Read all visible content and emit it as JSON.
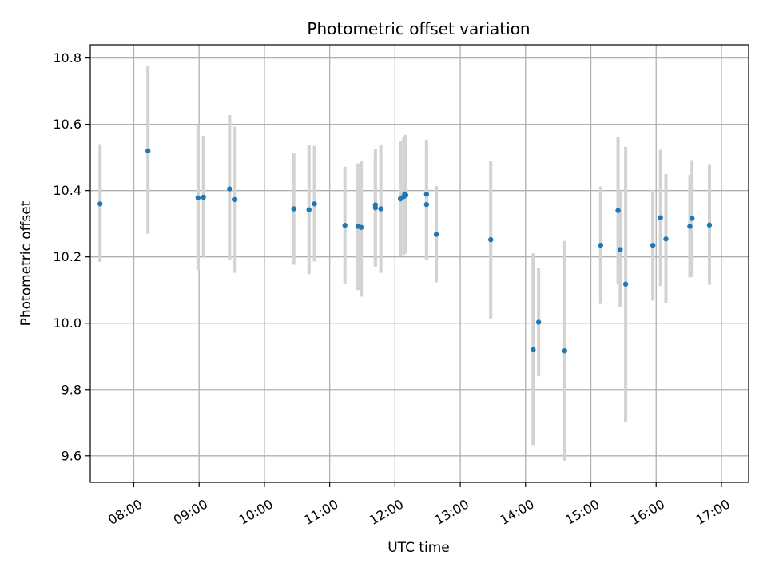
{
  "chart_data": {
    "type": "scatter",
    "title": "Photometric offset variation",
    "xlabel": "UTC time",
    "ylabel": "Photometric offset",
    "xlim": [
      "07:20",
      "17:25"
    ],
    "ylim": [
      9.52,
      10.84
    ],
    "x_ticks": [
      "08:00",
      "09:00",
      "10:00",
      "11:00",
      "12:00",
      "13:00",
      "14:00",
      "15:00",
      "16:00",
      "17:00"
    ],
    "y_ticks": [
      "9.6",
      "9.8",
      "10.0",
      "10.2",
      "10.4",
      "10.6",
      "10.8"
    ],
    "grid": true,
    "colors": {
      "point": "#1f77b4",
      "errorbar": "#d3d3d3",
      "grid": "#b0b0b0"
    },
    "points": [
      {
        "x": "07:29",
        "y": 10.36,
        "ylow": 10.185,
        "yhigh": 10.54
      },
      {
        "x": "08:13",
        "y": 10.52,
        "ylow": 10.27,
        "yhigh": 10.775
      },
      {
        "x": "08:59",
        "y": 10.378,
        "ylow": 10.16,
        "yhigh": 10.6
      },
      {
        "x": "09:04",
        "y": 10.38,
        "ylow": 10.2,
        "yhigh": 10.565
      },
      {
        "x": "09:28",
        "y": 10.405,
        "ylow": 10.19,
        "yhigh": 10.628
      },
      {
        "x": "09:33",
        "y": 10.373,
        "ylow": 10.152,
        "yhigh": 10.593
      },
      {
        "x": "10:27",
        "y": 10.345,
        "ylow": 10.176,
        "yhigh": 10.512
      },
      {
        "x": "10:41",
        "y": 10.342,
        "ylow": 10.148,
        "yhigh": 10.537
      },
      {
        "x": "10:46",
        "y": 10.36,
        "ylow": 10.186,
        "yhigh": 10.535
      },
      {
        "x": "11:14",
        "y": 10.295,
        "ylow": 10.118,
        "yhigh": 10.472
      },
      {
        "x": "11:26",
        "y": 10.292,
        "ylow": 10.1,
        "yhigh": 10.482
      },
      {
        "x": "11:29",
        "y": 10.289,
        "ylow": 10.08,
        "yhigh": 10.488
      },
      {
        "x": "11:42",
        "y": 10.357,
        "ylow": 10.171,
        "yhigh": 10.525
      },
      {
        "x": "11:42",
        "y": 10.348,
        "ylow": 10.172,
        "yhigh": 10.51
      },
      {
        "x": "11:47",
        "y": 10.345,
        "ylow": 10.152,
        "yhigh": 10.537
      },
      {
        "x": "12:05",
        "y": 10.375,
        "ylow": 10.203,
        "yhigh": 10.55
      },
      {
        "x": "12:08",
        "y": 10.382,
        "ylow": 10.206,
        "yhigh": 10.558
      },
      {
        "x": "12:09",
        "y": 10.39,
        "ylow": 10.21,
        "yhigh": 10.565
      },
      {
        "x": "12:10",
        "y": 10.386,
        "ylow": 10.212,
        "yhigh": 10.568
      },
      {
        "x": "12:29",
        "y": 10.389,
        "ylow": 10.23,
        "yhigh": 10.553
      },
      {
        "x": "12:29",
        "y": 10.358,
        "ylow": 10.192,
        "yhigh": 10.527
      },
      {
        "x": "12:38",
        "y": 10.268,
        "ylow": 10.123,
        "yhigh": 10.413
      },
      {
        "x": "13:28",
        "y": 10.252,
        "ylow": 10.014,
        "yhigh": 10.49
      },
      {
        "x": "14:07",
        "y": 9.92,
        "ylow": 9.632,
        "yhigh": 10.21
      },
      {
        "x": "14:12",
        "y": 10.003,
        "ylow": 9.84,
        "yhigh": 10.168
      },
      {
        "x": "14:36",
        "y": 9.917,
        "ylow": 9.585,
        "yhigh": 10.248
      },
      {
        "x": "15:09",
        "y": 10.235,
        "ylow": 10.058,
        "yhigh": 10.412
      },
      {
        "x": "15:25",
        "y": 10.34,
        "ylow": 10.12,
        "yhigh": 10.562
      },
      {
        "x": "15:27",
        "y": 10.222,
        "ylow": 10.05,
        "yhigh": 10.394
      },
      {
        "x": "15:32",
        "y": 10.118,
        "ylow": 9.702,
        "yhigh": 10.532
      },
      {
        "x": "15:57",
        "y": 10.235,
        "ylow": 10.068,
        "yhigh": 10.402
      },
      {
        "x": "16:04",
        "y": 10.318,
        "ylow": 10.112,
        "yhigh": 10.523
      },
      {
        "x": "16:09",
        "y": 10.254,
        "ylow": 10.06,
        "yhigh": 10.45
      },
      {
        "x": "16:31",
        "y": 10.292,
        "ylow": 10.138,
        "yhigh": 10.447
      },
      {
        "x": "16:33",
        "y": 10.316,
        "ylow": 10.14,
        "yhigh": 10.492
      },
      {
        "x": "16:49",
        "y": 10.296,
        "ylow": 10.116,
        "yhigh": 10.48
      }
    ]
  }
}
